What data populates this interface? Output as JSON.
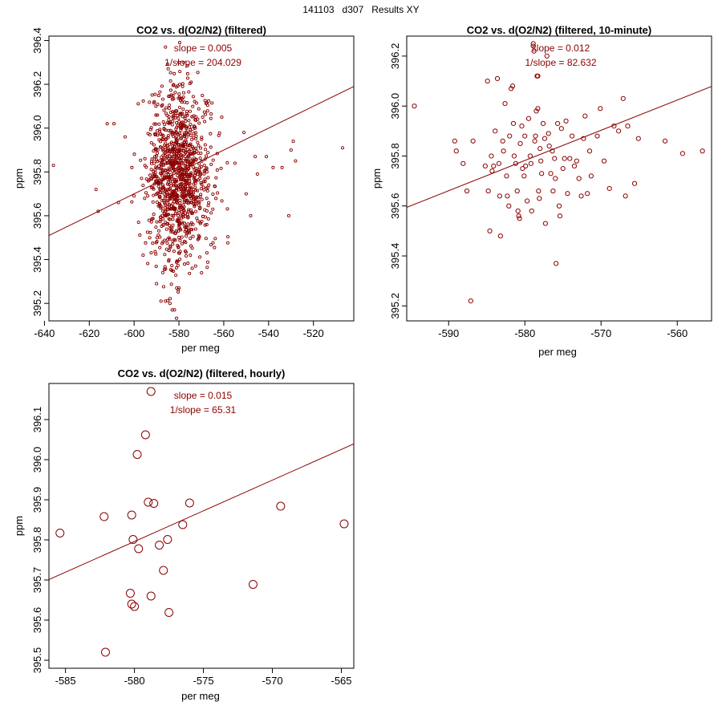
{
  "page": {
    "title": "141103   d307   Results XY"
  },
  "colors": {
    "series": "#8b0000",
    "axis": "#000000"
  },
  "chart_data": [
    {
      "type": "scatter",
      "title": "CO2 vs. d(O2/N2) (filtered)",
      "xlabel": "per meg",
      "ylabel": "ppm",
      "xlim": [
        -638,
        -502
      ],
      "ylim": [
        395.12,
        396.42
      ],
      "xticks": [
        "-640",
        "-620",
        "-600",
        "-580",
        "-560",
        "-540",
        "-520"
      ],
      "xtick_values": [
        -640,
        -620,
        -600,
        -580,
        -560,
        -540,
        -520
      ],
      "yticks": [
        "395.2",
        "395.4",
        "395.6",
        "395.8",
        "396.0",
        "396.2",
        "396.4"
      ],
      "ytick_values": [
        395.2,
        395.4,
        395.6,
        395.8,
        396.0,
        396.2,
        396.4
      ],
      "annotations": [
        "slope = 0.005",
        "1/slope = 204.029"
      ],
      "fit_line": {
        "slope": 0.005,
        "intercept": 398.7
      },
      "cloud": {
        "n": 1100,
        "center_x": -580,
        "center_y": 395.78,
        "sd_x": 7,
        "sd_y": 0.2,
        "seed": 7
      },
      "points": [
        [
          -636,
          395.83
        ],
        [
          -617,
          395.72
        ],
        [
          -616,
          395.62
        ],
        [
          -612,
          396.02
        ],
        [
          -609,
          396.02
        ],
        [
          -607,
          395.66
        ],
        [
          -604,
          395.96
        ],
        [
          -601,
          395.82
        ],
        [
          -598,
          395.57
        ],
        [
          -596,
          395.42
        ],
        [
          -590,
          395.29
        ],
        [
          -588,
          395.21
        ],
        [
          -586,
          395.21
        ],
        [
          -584,
          395.2
        ],
        [
          -583,
          395.17
        ],
        [
          -582,
          395.17
        ],
        [
          -581,
          395.27
        ],
        [
          -580,
          395.27
        ],
        [
          -586,
          396.37
        ],
        [
          -580,
          396.3
        ],
        [
          -578,
          396.3
        ],
        [
          -555,
          395.84
        ],
        [
          -550,
          395.7
        ],
        [
          -546,
          395.87
        ],
        [
          -541,
          395.87
        ],
        [
          -534,
          395.82
        ],
        [
          -530,
          395.9
        ],
        [
          -529,
          395.94
        ],
        [
          -528,
          395.85
        ],
        [
          -531,
          395.6
        ],
        [
          -507,
          395.91
        ],
        [
          -551,
          395.98
        ],
        [
          -548,
          395.6
        ],
        [
          -545,
          395.79
        ],
        [
          -538,
          395.82
        ]
      ]
    },
    {
      "type": "scatter",
      "title": "CO2 vs. d(O2/N2) (filtered, 10-minute)",
      "xlabel": "per meg",
      "ylabel": "ppm",
      "xlim": [
        -595.5,
        -555.5
      ],
      "ylim": [
        395.14,
        396.28
      ],
      "xticks": [
        "-590",
        "-580",
        "-570",
        "-560"
      ],
      "xtick_values": [
        -590,
        -580,
        -570,
        -560
      ],
      "yticks": [
        "395.2",
        "395.4",
        "395.6",
        "395.8",
        "396.0",
        "396.2"
      ],
      "ytick_values": [
        395.2,
        395.4,
        395.6,
        395.8,
        396.0,
        396.2
      ],
      "annotations": [
        "slope = 0.012",
        "1/slope = 82.632"
      ],
      "fit_line": {
        "slope": 0.0121,
        "intercept": 402.8
      },
      "points": [
        [
          -594.5,
          396.0
        ],
        [
          -589.2,
          395.86
        ],
        [
          -589.0,
          395.82
        ],
        [
          -588.1,
          395.77
        ],
        [
          -587.6,
          395.66
        ],
        [
          -587.1,
          395.22
        ],
        [
          -586.8,
          395.86
        ],
        [
          -585.2,
          395.76
        ],
        [
          -584.9,
          396.1
        ],
        [
          -584.8,
          395.66
        ],
        [
          -584.6,
          395.5
        ],
        [
          -584.4,
          395.8
        ],
        [
          -584.3,
          395.74
        ],
        [
          -584.1,
          395.76
        ],
        [
          -583.9,
          395.9
        ],
        [
          -583.6,
          396.11
        ],
        [
          -583.4,
          395.77
        ],
        [
          -583.3,
          395.64
        ],
        [
          -583.2,
          395.48
        ],
        [
          -582.9,
          395.86
        ],
        [
          -582.8,
          395.82
        ],
        [
          -582.6,
          396.01
        ],
        [
          -582.4,
          395.72
        ],
        [
          -582.3,
          395.64
        ],
        [
          -582.1,
          395.6
        ],
        [
          -582.0,
          395.88
        ],
        [
          -581.8,
          396.07
        ],
        [
          -581.6,
          396.08
        ],
        [
          -581.5,
          395.93
        ],
        [
          -581.4,
          395.8
        ],
        [
          -581.2,
          395.77
        ],
        [
          -581.0,
          395.66
        ],
        [
          -580.9,
          395.58
        ],
        [
          -580.8,
          395.56
        ],
        [
          -580.7,
          395.55
        ],
        [
          -580.6,
          395.85
        ],
        [
          -580.4,
          395.92
        ],
        [
          -580.3,
          395.75
        ],
        [
          -580.1,
          395.72
        ],
        [
          -580.0,
          395.88
        ],
        [
          -579.9,
          395.76
        ],
        [
          -579.7,
          395.62
        ],
        [
          -579.5,
          395.95
        ],
        [
          -579.3,
          395.8
        ],
        [
          -579.2,
          395.77
        ],
        [
          -579.1,
          395.58
        ],
        [
          -578.9,
          396.24
        ],
        [
          -578.9,
          396.25
        ],
        [
          -578.8,
          396.22
        ],
        [
          -578.7,
          395.86
        ],
        [
          -578.6,
          395.88
        ],
        [
          -578.5,
          395.98
        ],
        [
          -578.4,
          396.12
        ],
        [
          -578.3,
          396.12
        ],
        [
          -578.3,
          395.99
        ],
        [
          -578.2,
          395.66
        ],
        [
          -578.1,
          395.63
        ],
        [
          -578.0,
          395.83
        ],
        [
          -577.9,
          395.78
        ],
        [
          -577.8,
          395.73
        ],
        [
          -577.6,
          395.93
        ],
        [
          -577.4,
          395.87
        ],
        [
          -577.3,
          395.53
        ],
        [
          -577.1,
          396.2
        ],
        [
          -576.9,
          395.89
        ],
        [
          -576.8,
          395.84
        ],
        [
          -576.6,
          395.73
        ],
        [
          -576.4,
          395.82
        ],
        [
          -576.3,
          395.66
        ],
        [
          -576.1,
          395.79
        ],
        [
          -576.0,
          395.71
        ],
        [
          -575.9,
          395.37
        ],
        [
          -575.7,
          395.93
        ],
        [
          -575.5,
          395.6
        ],
        [
          -575.4,
          395.56
        ],
        [
          -575.2,
          395.91
        ],
        [
          -575.0,
          395.75
        ],
        [
          -574.8,
          395.79
        ],
        [
          -574.6,
          395.94
        ],
        [
          -574.4,
          395.65
        ],
        [
          -574.1,
          395.79
        ],
        [
          -573.8,
          395.88
        ],
        [
          -573.5,
          395.76
        ],
        [
          -573.2,
          395.78
        ],
        [
          -572.9,
          395.71
        ],
        [
          -572.6,
          395.64
        ],
        [
          -572.3,
          395.87
        ],
        [
          -572.1,
          395.96
        ],
        [
          -571.8,
          395.65
        ],
        [
          -571.5,
          395.82
        ],
        [
          -571.3,
          395.72
        ],
        [
          -570.5,
          395.88
        ],
        [
          -570.1,
          395.99
        ],
        [
          -569.6,
          395.78
        ],
        [
          -568.9,
          395.67
        ],
        [
          -568.3,
          395.92
        ],
        [
          -567.7,
          395.9
        ],
        [
          -567.1,
          396.03
        ],
        [
          -566.8,
          395.64
        ],
        [
          -566.5,
          395.92
        ],
        [
          -565.6,
          395.69
        ],
        [
          -565.1,
          395.87
        ],
        [
          -561.6,
          395.86
        ],
        [
          -559.3,
          395.81
        ],
        [
          -556.7,
          395.82
        ]
      ]
    },
    {
      "type": "scatter",
      "title": "CO2 vs. d(O2/N2) (filtered, hourly)",
      "xlabel": "per meg",
      "ylabel": "ppm",
      "xlim": [
        -586.2,
        -564.1
      ],
      "ylim": [
        395.48,
        396.19
      ],
      "xticks": [
        "-585",
        "-580",
        "-575",
        "-570",
        "-565"
      ],
      "xtick_values": [
        -585,
        -580,
        -575,
        -570,
        -565
      ],
      "yticks": [
        "395.5",
        "395.6",
        "395.7",
        "395.8",
        "395.9",
        "396.0",
        "396.1"
      ],
      "ytick_values": [
        395.5,
        395.6,
        395.7,
        395.8,
        395.9,
        396.0,
        396.1
      ],
      "annotations": [
        "slope = 0.015",
        "1/slope = 65.31"
      ],
      "fit_line": {
        "slope": 0.0153,
        "intercept": 404.67
      },
      "points": [
        [
          -585.4,
          395.817
        ],
        [
          -582.2,
          395.858
        ],
        [
          -582.1,
          395.52
        ],
        [
          -580.2,
          395.862
        ],
        [
          -580.3,
          395.667
        ],
        [
          -580.2,
          395.64
        ],
        [
          -580.1,
          395.801
        ],
        [
          -580.0,
          395.634
        ],
        [
          -579.8,
          396.013
        ],
        [
          -579.7,
          395.778
        ],
        [
          -579.2,
          396.062
        ],
        [
          -579.0,
          395.894
        ],
        [
          -578.8,
          396.17
        ],
        [
          -578.8,
          395.66
        ],
        [
          -578.6,
          395.891
        ],
        [
          -578.2,
          395.787
        ],
        [
          -577.9,
          395.724
        ],
        [
          -577.6,
          395.801
        ],
        [
          -577.5,
          395.619
        ],
        [
          -576.5,
          395.838
        ],
        [
          -576.0,
          395.892
        ],
        [
          -571.4,
          395.689
        ],
        [
          -569.4,
          395.884
        ],
        [
          -564.8,
          395.84
        ]
      ]
    }
  ]
}
